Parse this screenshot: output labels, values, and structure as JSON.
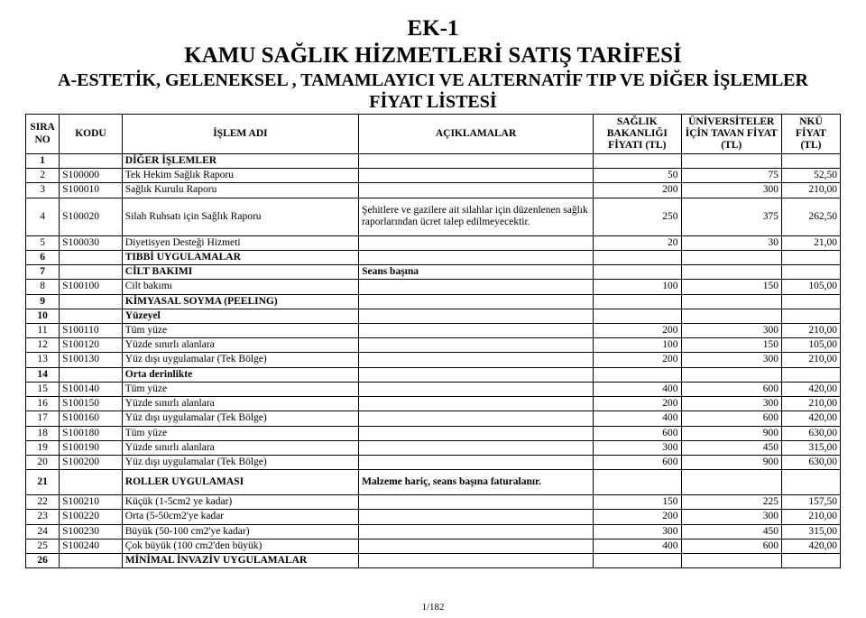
{
  "header": {
    "ek": "EK-1",
    "title": "KAMU SAĞLIK HİZMETLERİ SATIŞ TARİFESİ",
    "sub1": "A-ESTETİK, GELENEKSEL , TAMAMLAYICI VE ALTERNATİF TIP  VE DİĞER İŞLEMLER",
    "sub2": "FİYAT LİSTESİ"
  },
  "cols": {
    "sira": "SIRA NO",
    "kodu": "KODU",
    "islem": "İŞLEM ADI",
    "acik": "AÇIKLAMALAR",
    "p1": "SAĞLIK BAKANLIĞI FİYATI (TL)",
    "p2": "ÜNİVERSİTELER İÇİN TAVAN FİYAT (TL)",
    "p3": "NKÜ FİYAT (TL)"
  },
  "rows": [
    {
      "no": "1",
      "kodu": "",
      "adi": "DİĞER İŞLEMLER",
      "acik": "",
      "p1": "",
      "p2": "",
      "p3": "",
      "section": true
    },
    {
      "no": "2",
      "kodu": "S100000",
      "adi": "Tek Hekim Sağlık Raporu",
      "acik": "",
      "p1": "50",
      "p2": "75",
      "p3": "52,50"
    },
    {
      "no": "3",
      "kodu": "S100010",
      "adi": "Sağlık Kurulu Raporu",
      "acik": "",
      "p1": "200",
      "p2": "300",
      "p3": "210,00"
    },
    {
      "no": "4",
      "kodu": "S100020",
      "adi": "Silah Ruhsatı için Sağlık Raporu",
      "acik": "Şehitlere ve gazilere ait silahlar için düzenlenen sağlık raporlarından ücret talep edilmeyecektir.",
      "p1": "250",
      "p2": "375",
      "p3": "262,50",
      "tall": true
    },
    {
      "no": "5",
      "kodu": "S100030",
      "adi": "Diyetisyen Desteği Hizmeti",
      "acik": "",
      "p1": "20",
      "p2": "30",
      "p3": "21,00"
    },
    {
      "no": "6",
      "kodu": "",
      "adi": "TIBBİ UYGULAMALAR",
      "acik": "",
      "p1": "",
      "p2": "",
      "p3": "",
      "section": true
    },
    {
      "no": "7",
      "kodu": "",
      "adi": "CİLT BAKIMI",
      "acik": "Seans başına",
      "p1": "",
      "p2": "",
      "p3": "",
      "section": true
    },
    {
      "no": "8",
      "kodu": "S100100",
      "adi": "Cilt bakımı",
      "acik": "",
      "p1": "100",
      "p2": "150",
      "p3": "105,00"
    },
    {
      "no": "9",
      "kodu": "",
      "adi": "KİMYASAL SOYMA (PEELING)",
      "acik": "",
      "p1": "",
      "p2": "",
      "p3": "",
      "section": true
    },
    {
      "no": "10",
      "kodu": "",
      "adi": "Yüzeyel",
      "acik": "",
      "p1": "",
      "p2": "",
      "p3": "",
      "section": true
    },
    {
      "no": "11",
      "kodu": "S100110",
      "adi": "Tüm yüze",
      "acik": "",
      "p1": "200",
      "p2": "300",
      "p3": "210,00"
    },
    {
      "no": "12",
      "kodu": "S100120",
      "adi": "Yüzde sınırlı alanlara",
      "acik": "",
      "p1": "100",
      "p2": "150",
      "p3": "105,00"
    },
    {
      "no": "13",
      "kodu": "S100130",
      "adi": "Yüz dışı uygulamalar (Tek Bölge)",
      "acik": "",
      "p1": "200",
      "p2": "300",
      "p3": "210,00"
    },
    {
      "no": "14",
      "kodu": "",
      "adi": "Orta derinlikte",
      "acik": "",
      "p1": "",
      "p2": "",
      "p3": "",
      "section": true
    },
    {
      "no": "15",
      "kodu": "S100140",
      "adi": "Tüm yüze",
      "acik": "",
      "p1": "400",
      "p2": "600",
      "p3": "420,00"
    },
    {
      "no": "16",
      "kodu": "S100150",
      "adi": "Yüzde sınırlı alanlara",
      "acik": "",
      "p1": "200",
      "p2": "300",
      "p3": "210,00"
    },
    {
      "no": "17",
      "kodu": "S100160",
      "adi": "Yüz dışı uygulamalar (Tek Bölge)",
      "acik": "",
      "p1": "400",
      "p2": "600",
      "p3": "420,00"
    },
    {
      "no": "18",
      "kodu": "S100180",
      "adi": "Tüm yüze",
      "acik": "",
      "p1": "600",
      "p2": "900",
      "p3": "630,00"
    },
    {
      "no": "19",
      "kodu": "S100190",
      "adi": "Yüzde sınırlı alanlara",
      "acik": "",
      "p1": "300",
      "p2": "450",
      "p3": "315,00"
    },
    {
      "no": "20",
      "kodu": "S100200",
      "adi": "Yüz dışı uygulamalar (Tek Bölge)",
      "acik": "",
      "p1": "600",
      "p2": "900",
      "p3": "630,00"
    },
    {
      "no": "21",
      "kodu": "",
      "adi": "ROLLER UYGULAMASI",
      "acik": "Malzeme hariç, seans başına faturalanır.",
      "p1": "",
      "p2": "",
      "p3": "",
      "section": true,
      "tall2": true
    },
    {
      "no": "22",
      "kodu": "S100210",
      "adi": "Küçük (1-5cm2 ye kadar)",
      "acik": "",
      "p1": "150",
      "p2": "225",
      "p3": "157,50"
    },
    {
      "no": "23",
      "kodu": "S100220",
      "adi": "Orta (5-50cm2'ye kadar",
      "acik": "",
      "p1": "200",
      "p2": "300",
      "p3": "210,00"
    },
    {
      "no": "24",
      "kodu": "S100230",
      "adi": "Büyük (50-100 cm2'ye kadar)",
      "acik": "",
      "p1": "300",
      "p2": "450",
      "p3": "315,00"
    },
    {
      "no": "25",
      "kodu": "S100240",
      "adi": "Çok büyük (100 cm2'den büyük)",
      "acik": "",
      "p1": "400",
      "p2": "600",
      "p3": "420,00"
    },
    {
      "no": "26",
      "kodu": "",
      "adi": "MİNİMAL İNVAZİV UYGULAMALAR",
      "acik": "",
      "p1": "",
      "p2": "",
      "p3": "",
      "section": true
    }
  ],
  "pager": "1/182"
}
